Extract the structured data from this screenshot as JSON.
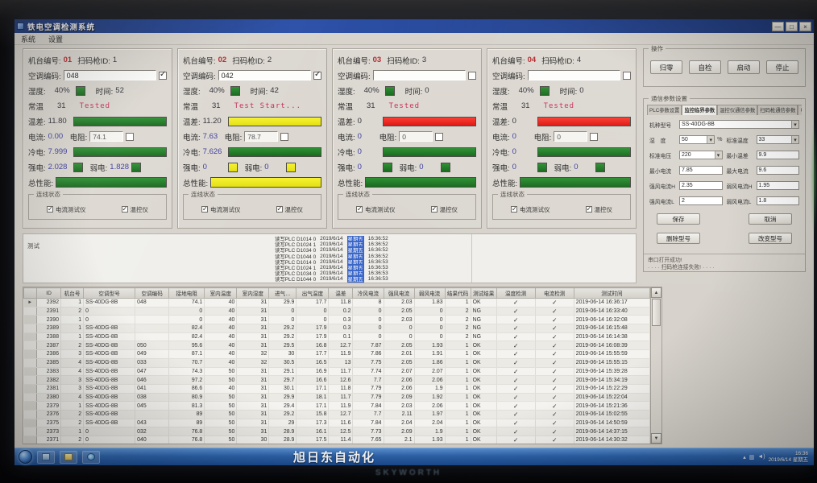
{
  "window": {
    "title": "铁电空调检测系统",
    "menu": [
      "系统",
      "设置"
    ]
  },
  "panel_labels": {
    "station": "机台编号:",
    "gun": "扫码枪ID:",
    "code": "空调编码:",
    "humidity": "湿度:",
    "time": "时间:",
    "room": "常温",
    "diff": "温差:",
    "current": "电流:",
    "resistance": "电阻:",
    "cold": "冷电:",
    "strong": "强电:",
    "weak": "弱电:",
    "perf": "总性能:",
    "conn": "连线状态",
    "cb1": "电流测试仪",
    "cb2": "温控仪"
  },
  "panels": [
    {
      "id": "01",
      "gun_id": "1",
      "code": "048",
      "code_checked": true,
      "humidity": "40%",
      "time": "52",
      "room_temp": "31",
      "status": "Tested",
      "temp_diff": "11.80",
      "diff_color": "g",
      "current": "0.00",
      "resistance": "74.1",
      "cold": "7.999",
      "cold_color": "g",
      "strong": "2.028",
      "weak": "1.828",
      "sw_color": "g",
      "perf_color": "g"
    },
    {
      "id": "02",
      "gun_id": "2",
      "code": "042",
      "code_checked": true,
      "humidity": "40%",
      "time": "42",
      "room_temp": "31",
      "status": "Test Start...",
      "temp_diff": "11.20",
      "diff_color": "y",
      "current": "7.63",
      "resistance": "78.7",
      "cold": "7.626",
      "cold_color": "g",
      "strong": "0",
      "weak": "0",
      "sw_color": "y",
      "perf_color": "y"
    },
    {
      "id": "03",
      "gun_id": "3",
      "code": "",
      "code_checked": false,
      "humidity": "40%",
      "time": "0",
      "room_temp": "31",
      "status": "Tested",
      "temp_diff": "0",
      "diff_color": "r",
      "current": "0",
      "resistance": "0",
      "cold": "0",
      "cold_color": "g",
      "strong": "0",
      "weak": "0",
      "sw_color": "g",
      "perf_color": "g"
    },
    {
      "id": "04",
      "gun_id": "4",
      "code": "",
      "code_checked": false,
      "humidity": "40%",
      "time": "0",
      "room_temp": "31",
      "status": "Tested",
      "temp_diff": "0",
      "diff_color": "r",
      "current": "0",
      "resistance": "0",
      "cold": "0",
      "cold_color": "g",
      "strong": "0",
      "weak": "0",
      "sw_color": "g",
      "perf_color": "g"
    }
  ],
  "right_panel": {
    "op_group": "操作",
    "op_buttons": [
      "归零",
      "自检",
      "启动",
      "停止"
    ],
    "comm_group": "通信参数设置",
    "tabs": [
      "PLC参数设置",
      "监控临界参数",
      "温控仪通信参数",
      "扫码枪通信参数",
      "电流测试仪"
    ],
    "selected_tab": 1,
    "field_rows": [
      [
        {
          "label": "机种型号",
          "value": "SS-40DG-8B",
          "type": "dd"
        }
      ],
      [
        {
          "label": "湿　度",
          "value": "50",
          "type": "dd",
          "suffix": "%"
        },
        {
          "label": "标准温度",
          "value": "33",
          "type": "dd"
        }
      ],
      [
        {
          "label": "标准电压",
          "value": "220",
          "type": "dd"
        },
        {
          "label": "最小温差",
          "value": "9.9",
          "type": "txt"
        }
      ],
      [
        {
          "label": "最小电流",
          "value": "7.85",
          "type": "txt"
        },
        {
          "label": "最大电流",
          "value": "9.6",
          "type": "txt"
        }
      ],
      [
        {
          "label": "强风电流H",
          "value": "2.35",
          "type": "txt"
        },
        {
          "label": "弱风电流H",
          "value": "1.95",
          "type": "txt"
        }
      ],
      [
        {
          "label": "强风电流L",
          "value": "2",
          "type": "txt"
        },
        {
          "label": "弱风电流L",
          "value": "1.8",
          "type": "txt"
        }
      ]
    ],
    "save": "保存",
    "cancel": "取消",
    "delete_model": "删除型号",
    "change_model": "改变型号",
    "status_lines": [
      "串口打开成功!",
      "· · · · 扫码枪连接失败! · · · ·"
    ]
  },
  "mid": {
    "label": "测试",
    "logs": [
      {
        "text": "读写PLC D1014 0",
        "date": "2019/6/14",
        "day": "星期五",
        "time": "16:36:52"
      },
      {
        "text": "读写PLC D1024 1",
        "date": "2019/6/14",
        "day": "星期五",
        "time": "16:36:52"
      },
      {
        "text": "读写PLC D1034 0",
        "date": "2019/6/14",
        "day": "星期五",
        "time": "16:36:52"
      },
      {
        "text": "读写PLC D1044 0",
        "date": "2019/6/14",
        "day": "星期五",
        "time": "16:36:52"
      },
      {
        "text": "读写PLC D1014 0",
        "date": "2019/6/14",
        "day": "星期五",
        "time": "16:36:53"
      },
      {
        "text": "读写PLC D1024 1",
        "date": "2019/6/14",
        "day": "星期五",
        "time": "16:36:53"
      },
      {
        "text": "读写PLC D1034 0",
        "date": "2019/6/14",
        "day": "星期五",
        "time": "16:36:53"
      },
      {
        "text": "读写PLC D1044 0",
        "date": "2019/6/14",
        "day": "星期五",
        "time": "16:36:53"
      }
    ]
  },
  "table": {
    "headers": [
      "",
      "ID",
      "机台号",
      "空调型号",
      "空调编码",
      "接地电阻",
      "室内温度",
      "室内湿度",
      "进气…",
      "出气温度",
      "温差",
      "冷风电流",
      "强风电流",
      "弱风电流",
      "结果代码",
      "测试结果",
      "温度检测",
      "电流检测",
      "测试时间"
    ],
    "rows": [
      [
        "2392",
        "1",
        "SS-40DG-8B",
        "048",
        "74.1",
        "40",
        "31",
        "29.9",
        "17.7",
        "11.8",
        "8",
        "2.03",
        "1.83",
        "1",
        "OK",
        true,
        true,
        "2019-06-14 16:36:17"
      ],
      [
        "2391",
        "2",
        "0",
        "",
        "0",
        "40",
        "31",
        "0",
        "0",
        "0.2",
        "0",
        "2.05",
        "0",
        "2",
        "NG",
        true,
        true,
        "2019-06-14 16:33:40"
      ],
      [
        "2390",
        "1",
        "0",
        "",
        "0",
        "40",
        "31",
        "0",
        "0",
        "0.3",
        "0",
        "2.03",
        "0",
        "2",
        "NG",
        true,
        true,
        "2019-06-14 16:32:08"
      ],
      [
        "2389",
        "1",
        "SS-40DG-8B",
        "",
        "82.4",
        "40",
        "31",
        "29.2",
        "17.9",
        "0.3",
        "0",
        "0",
        "0",
        "2",
        "NG",
        true,
        true,
        "2019-06-14 16:15:48"
      ],
      [
        "2388",
        "1",
        "SS-40DG-8B",
        "",
        "82.4",
        "40",
        "31",
        "29.2",
        "17.9",
        "0.1",
        "0",
        "0",
        "0",
        "2",
        "NG",
        true,
        true,
        "2019-06-14 16:14:38"
      ],
      [
        "2387",
        "2",
        "SS-40DG-8B",
        "050",
        "95.6",
        "40",
        "31",
        "29.5",
        "16.8",
        "12.7",
        "7.87",
        "2.05",
        "1.93",
        "1",
        "OK",
        true,
        true,
        "2019-06-14 16:08:39"
      ],
      [
        "2386",
        "3",
        "SS-40DG-8B",
        "049",
        "87.1",
        "40",
        "32",
        "30",
        "17.7",
        "11.9",
        "7.86",
        "2.01",
        "1.91",
        "1",
        "OK",
        true,
        true,
        "2019-06-14 15:55:59"
      ],
      [
        "2385",
        "4",
        "SS-40DG-8B",
        "033",
        "70.7",
        "40",
        "32",
        "30.5",
        "16.5",
        "13",
        "7.75",
        "2.05",
        "1.86",
        "1",
        "OK",
        true,
        true,
        "2019-06-14 15:55:15"
      ],
      [
        "2383",
        "4",
        "SS-40DG-8B",
        "047",
        "74.3",
        "50",
        "31",
        "29.1",
        "16.9",
        "11.7",
        "7.74",
        "2.07",
        "2.07",
        "1",
        "OK",
        true,
        true,
        "2019-06-14 15:39:28"
      ],
      [
        "2382",
        "3",
        "SS-40DG-8B",
        "046",
        "97.2",
        "50",
        "31",
        "29.7",
        "16.6",
        "12.6",
        "7.7",
        "2.06",
        "2.06",
        "1",
        "OK",
        true,
        true,
        "2019-06-14 15:34:19"
      ],
      [
        "2381",
        "3",
        "SS-40DG-8B",
        "041",
        "86.6",
        "40",
        "31",
        "30.1",
        "17.1",
        "11.8",
        "7.79",
        "2.06",
        "1.9",
        "1",
        "OK",
        true,
        true,
        "2019-06-14 15:22:29"
      ],
      [
        "2380",
        "4",
        "SS-40DG-8B",
        "038",
        "80.9",
        "50",
        "31",
        "29.9",
        "18.1",
        "11.7",
        "7.79",
        "2.09",
        "1.92",
        "1",
        "OK",
        true,
        true,
        "2019-06-14 15:22:04"
      ],
      [
        "2379",
        "1",
        "SS-40DG-8B",
        "045",
        "81.3",
        "50",
        "31",
        "29.4",
        "17.1",
        "11.9",
        "7.84",
        "2.03",
        "2.06",
        "1",
        "OK",
        true,
        true,
        "2019-06-14 15:21:36"
      ],
      [
        "2376",
        "2",
        "SS-40DG-8B",
        "",
        "89",
        "50",
        "31",
        "29.2",
        "15.8",
        "12.7",
        "7.7",
        "2.11",
        "1.97",
        "1",
        "OK",
        true,
        true,
        "2019-06-14 15:02:55"
      ],
      [
        "2375",
        "2",
        "SS-40DG-8B",
        "043",
        "89",
        "50",
        "31",
        "29",
        "17.3",
        "11.6",
        "7.84",
        "2.04",
        "2.04",
        "1",
        "OK",
        true,
        true,
        "2019-06-14 14:50:59"
      ],
      [
        "2373",
        "1",
        "0",
        "032",
        "76.8",
        "50",
        "31",
        "28.9",
        "16.1",
        "12.5",
        "7.73",
        "2.09",
        "1.9",
        "1",
        "OK",
        true,
        true,
        "2019-06-14 14:37:15"
      ],
      [
        "2371",
        "2",
        "0",
        "040",
        "76.8",
        "50",
        "30",
        "28.9",
        "17.5",
        "11.4",
        "7.65",
        "2.1",
        "1.93",
        "1",
        "OK",
        true,
        true,
        "2019-06-14 14:30:32"
      ]
    ]
  },
  "taskbar": {
    "watermark": "旭日东自动化",
    "time": "16:36",
    "date": "2019/6/14 星期五"
  },
  "monitor": {
    "brand": "SKYWORTH"
  }
}
